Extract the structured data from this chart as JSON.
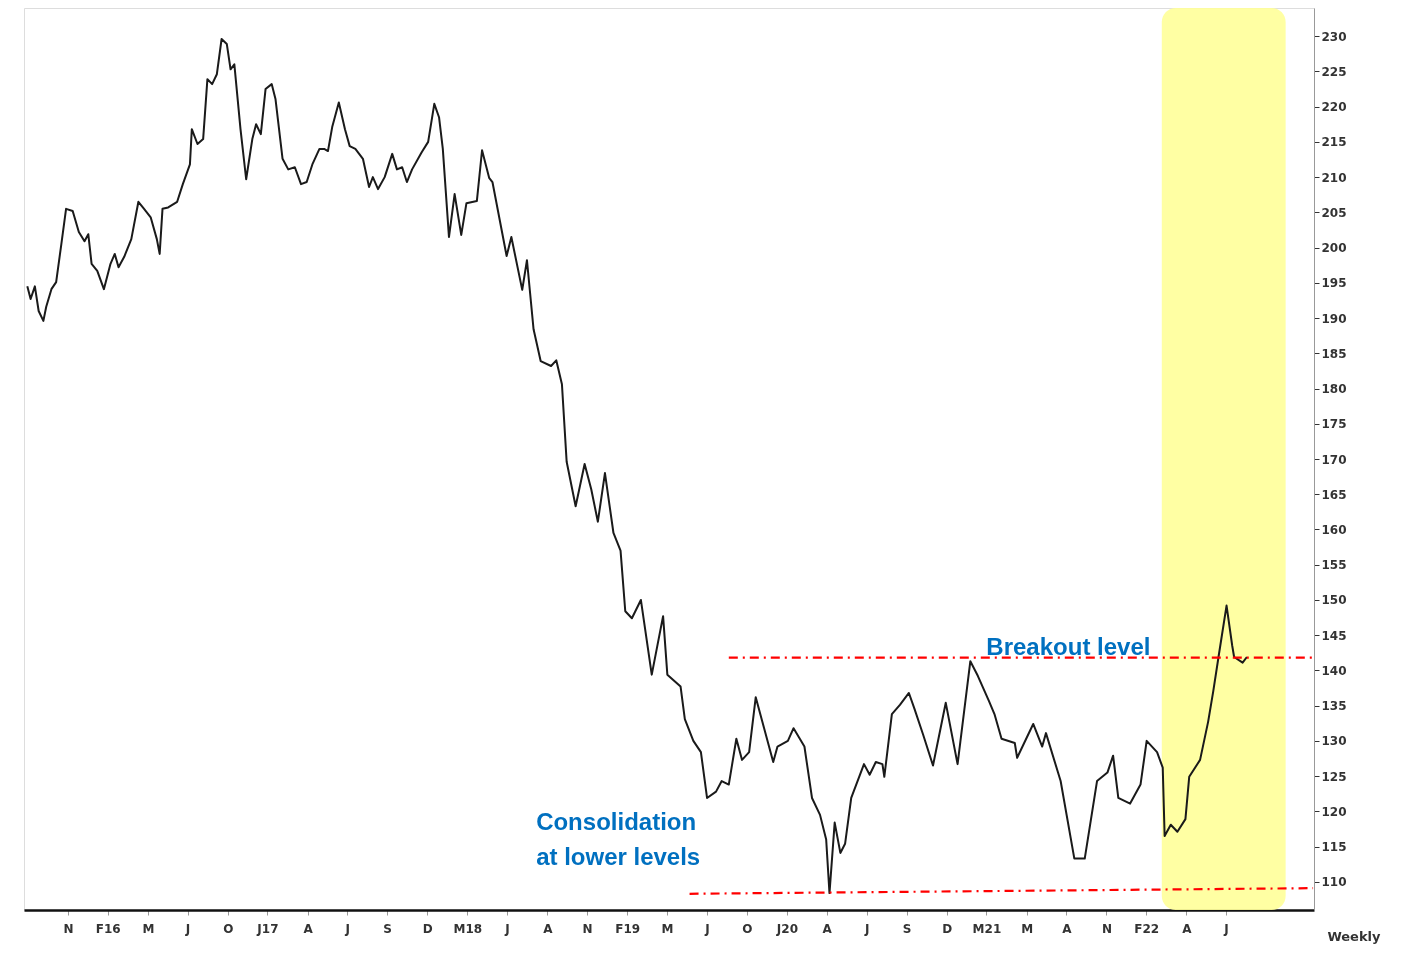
{
  "chart_data": {
    "type": "line",
    "xlabel": "Weekly",
    "xlim": [
      "2015-08-14",
      "2023-02-02"
    ],
    "ylim": [
      106,
      234
    ],
    "xticks": [
      {
        "value": "2015-11-15",
        "label": "N"
      },
      {
        "value": "2016-02-07",
        "label": "F16"
      },
      {
        "value": "2016-05-02",
        "label": "M"
      },
      {
        "value": "2016-07-25",
        "label": "J"
      },
      {
        "value": "2016-10-18",
        "label": "O"
      },
      {
        "value": "2017-01-10",
        "label": "J17"
      },
      {
        "value": "2017-04-05",
        "label": "A"
      },
      {
        "value": "2017-06-28",
        "label": "J"
      },
      {
        "value": "2017-09-20",
        "label": "S"
      },
      {
        "value": "2017-12-14",
        "label": "D"
      },
      {
        "value": "2018-03-09",
        "label": "M18"
      },
      {
        "value": "2018-06-01",
        "label": "J"
      },
      {
        "value": "2018-08-25",
        "label": "A"
      },
      {
        "value": "2018-11-17",
        "label": "N"
      },
      {
        "value": "2019-02-10",
        "label": "F19"
      },
      {
        "value": "2019-05-05",
        "label": "M"
      },
      {
        "value": "2019-07-29",
        "label": "J"
      },
      {
        "value": "2019-10-21",
        "label": "O"
      },
      {
        "value": "2020-01-14",
        "label": "J20"
      },
      {
        "value": "2020-04-07",
        "label": "A"
      },
      {
        "value": "2020-07-01",
        "label": "J"
      },
      {
        "value": "2020-09-23",
        "label": "S"
      },
      {
        "value": "2020-12-17",
        "label": "D"
      },
      {
        "value": "2021-03-11",
        "label": "M21"
      },
      {
        "value": "2021-06-04",
        "label": "M"
      },
      {
        "value": "2021-08-27",
        "label": "A"
      },
      {
        "value": "2021-11-20",
        "label": "N"
      },
      {
        "value": "2022-02-12",
        "label": "F22"
      },
      {
        "value": "2022-05-08",
        "label": "A"
      },
      {
        "value": "2022-07-31",
        "label": "J"
      }
    ],
    "yticks": [
      110,
      115,
      120,
      125,
      130,
      135,
      140,
      145,
      150,
      155,
      160,
      165,
      170,
      175,
      180,
      185,
      190,
      195,
      200,
      205,
      210,
      215,
      220,
      225,
      230
    ],
    "grid": false,
    "bands": [
      {
        "axis": "x",
        "from": "2022-03-17",
        "to": "2022-12-04",
        "color": "#ffff99"
      }
    ],
    "series": [
      {
        "type": "line",
        "color": "#1a1a1a",
        "line_style": "solid",
        "x": [
          "2015-08-21",
          "2015-08-28",
          "2015-09-06",
          "2015-09-14",
          "2015-09-24",
          "2015-09-30",
          "2015-10-11",
          "2015-10-21",
          "2015-11-01",
          "2015-11-11",
          "2015-11-25",
          "2015-12-08",
          "2015-12-20",
          "2015-12-28",
          "2016-01-04",
          "2016-01-16",
          "2016-01-30",
          "2016-02-13",
          "2016-02-22",
          "2016-03-01",
          "2016-03-13",
          "2016-03-28",
          "2016-04-12",
          "2016-04-24",
          "2016-05-08",
          "2016-05-21",
          "2016-05-27",
          "2016-06-02",
          "2016-06-14",
          "2016-07-03",
          "2016-07-15",
          "2016-07-30",
          "2016-08-03",
          "2016-08-15",
          "2016-08-27",
          "2016-09-05",
          "2016-09-15",
          "2016-09-25",
          "2016-10-05",
          "2016-10-16",
          "2016-10-24",
          "2016-11-01",
          "2016-11-14",
          "2016-11-26",
          "2016-12-09",
          "2016-12-17",
          "2016-12-27",
          "2017-01-06",
          "2017-01-19",
          "2017-01-27",
          "2017-02-11",
          "2017-02-23",
          "2017-03-09",
          "2017-03-22",
          "2017-04-03",
          "2017-04-15",
          "2017-04-30",
          "2017-05-10",
          "2017-05-18",
          "2017-05-27",
          "2017-06-10",
          "2017-06-23",
          "2017-07-03",
          "2017-07-15",
          "2017-07-31",
          "2017-08-13",
          "2017-08-21",
          "2017-09-01",
          "2017-09-15",
          "2017-10-01",
          "2017-10-11",
          "2017-10-22",
          "2017-11-01",
          "2017-11-12",
          "2017-12-02",
          "2017-12-16",
          "2017-12-29",
          "2018-01-08",
          "2018-01-16",
          "2018-01-29",
          "2018-02-10",
          "2018-02-24",
          "2018-03-07",
          "2018-03-29",
          "2018-04-09",
          "2018-04-24",
          "2018-05-01",
          "2018-05-31",
          "2018-06-10",
          "2018-07-03",
          "2018-07-13",
          "2018-07-27",
          "2018-08-11",
          "2018-09-02",
          "2018-09-13",
          "2018-09-25",
          "2018-10-05",
          "2018-10-24",
          "2018-11-12",
          "2018-11-26",
          "2018-12-10",
          "2018-12-25",
          "2019-01-12",
          "2019-01-27",
          "2019-02-06",
          "2019-02-20",
          "2019-03-11",
          "2019-04-03",
          "2019-04-27",
          "2019-05-06",
          "2019-06-03",
          "2019-06-12",
          "2019-06-30",
          "2019-07-16",
          "2019-07-29",
          "2019-08-17",
          "2019-08-29",
          "2019-09-13",
          "2019-09-29",
          "2019-10-11",
          "2019-10-26",
          "2019-11-09",
          "2019-11-23",
          "2019-12-16",
          "2019-12-25",
          "2020-01-16",
          "2020-01-28",
          "2020-02-20",
          "2020-03-07",
          "2020-03-24",
          "2020-04-06",
          "2020-04-13",
          "2020-04-24",
          "2020-05-06",
          "2020-05-16",
          "2020-05-29",
          "2020-06-25",
          "2020-07-07",
          "2020-07-20",
          "2020-08-03",
          "2020-08-07",
          "2020-08-23",
          "2020-09-09",
          "2020-09-28",
          "2020-10-10",
          "2020-10-28",
          "2020-11-18",
          "2020-12-15",
          "2021-01-09",
          "2021-02-05",
          "2021-02-21",
          "2021-03-16",
          "2021-03-28",
          "2021-04-12",
          "2021-05-10",
          "2021-05-15",
          "2021-06-18",
          "2021-07-07",
          "2021-07-15",
          "2021-08-15",
          "2021-09-13",
          "2021-10-05",
          "2021-10-31",
          "2021-11-22",
          "2021-12-04",
          "2021-12-15",
          "2022-01-09",
          "2022-01-31",
          "2022-02-13",
          "2022-03-07",
          "2022-03-19",
          "2022-03-23",
          "2022-04-05",
          "2022-04-19",
          "2022-05-06",
          "2022-05-14",
          "2022-06-06",
          "2022-06-23",
          "2022-07-04",
          "2022-07-15",
          "2022-08-01",
          "2022-08-13",
          "2022-08-17",
          "2022-09-04",
          "2022-09-13"
        ],
        "values": [
          194.5,
          192.7,
          194.5,
          191.0,
          189.6,
          191.6,
          194.1,
          195.1,
          200.5,
          205.5,
          205.2,
          202.2,
          200.9,
          201.9,
          197.7,
          196.7,
          194.1,
          197.7,
          199.1,
          197.2,
          198.7,
          201.2,
          206.5,
          205.5,
          204.3,
          201.2,
          199.1,
          205.5,
          205.7,
          206.5,
          209.0,
          211.8,
          216.8,
          214.7,
          215.4,
          223.9,
          223.2,
          224.6,
          229.6,
          228.9,
          225.3,
          226.0,
          216.8,
          209.7,
          215.4,
          217.5,
          216.1,
          222.5,
          223.2,
          221.1,
          212.6,
          211.1,
          211.4,
          209.0,
          209.3,
          211.8,
          214.0,
          214.0,
          213.7,
          217.1,
          220.6,
          216.8,
          214.4,
          214.0,
          212.6,
          208.6,
          210.0,
          208.3,
          210.0,
          213.3,
          211.1,
          211.4,
          209.3,
          211.1,
          213.5,
          215.0,
          220.4,
          218.5,
          214.0,
          201.5,
          207.6,
          201.8,
          206.3,
          206.6,
          213.8,
          209.9,
          209.3,
          198.8,
          201.5,
          194.0,
          198.2,
          188.4,
          183.9,
          183.2,
          184.0,
          180.6,
          169.6,
          163.3,
          169.3,
          165.7,
          161.1,
          168.0,
          159.5,
          157.0,
          148.4,
          147.4,
          150.0,
          139.4,
          147.7,
          139.4,
          137.7,
          133.1,
          130.0,
          128.4,
          121.9,
          122.8,
          124.3,
          123.8,
          130.3,
          127.3,
          128.4,
          136.2,
          132.7,
          127.0,
          129.2,
          130.0,
          131.8,
          129.2,
          121.9,
          119.5,
          116.0,
          108.4,
          118.4,
          114.1,
          115.4,
          121.9,
          126.7,
          125.2,
          127.0,
          126.7,
          124.9,
          133.8,
          135.1,
          136.8,
          134.5,
          130.9,
          126.5,
          135.4,
          126.7,
          141.3,
          139.2,
          135.7,
          133.8,
          130.3,
          129.7,
          127.6,
          132.4,
          129.2,
          131.1,
          124.3,
          113.3,
          113.3,
          124.3,
          125.5,
          127.9,
          121.9,
          121.1,
          123.8,
          130.0,
          128.4,
          126.2,
          116.5,
          118.1,
          117.1,
          118.9,
          124.9,
          127.3,
          132.7,
          137.1,
          141.9,
          149.2,
          143.5,
          141.9,
          141.1,
          141.9
        ]
      },
      {
        "type": "line",
        "color": "#ff0000",
        "line_style": "dashed",
        "x": [
          "2019-09-13",
          "2023-02-02"
        ],
        "values": [
          141.8,
          141.8
        ]
      },
      {
        "type": "line",
        "color": "#ff0000",
        "line_style": "dashed",
        "x": [
          "2019-06-22",
          "2023-01-31"
        ],
        "values": [
          108.3,
          109.1
        ]
      }
    ],
    "annotations": [
      "Breakout level",
      "Consolidation",
      "at lower levels"
    ]
  }
}
